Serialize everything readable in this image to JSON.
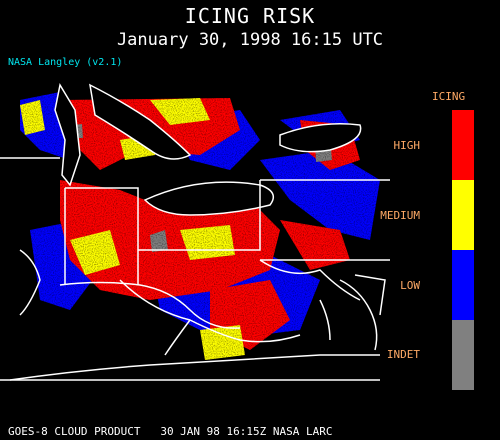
{
  "header": {
    "title": "ICING RISK",
    "subtitle": "January 30, 1998 16:15 UTC",
    "credit": "NASA Langley (v2.1)"
  },
  "legend": {
    "title": "ICING",
    "items": [
      {
        "label": "HIGH",
        "color": "#ff0000"
      },
      {
        "label": "MEDIUM",
        "color": "#ffff00"
      },
      {
        "label": "LOW",
        "color": "#0000ff"
      },
      {
        "label": "INDET",
        "color": "#808080"
      }
    ]
  },
  "footer": "GOES-8 CLOUD PRODUCT   30 JAN 98 16:15Z NASA LARC",
  "colors": {
    "background": "#000000",
    "boundaries": "#ffffff",
    "credit": "#00e5ee",
    "legend_text": "#ffaa66"
  }
}
